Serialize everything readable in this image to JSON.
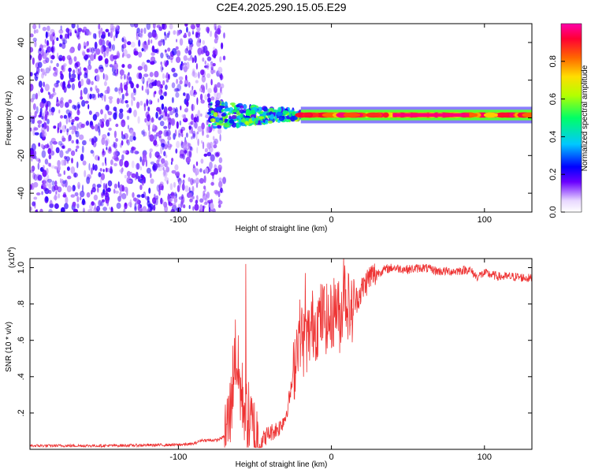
{
  "chart_data": [
    {
      "type": "heatmap",
      "title": "C2E4.2025.290.15.05.E29",
      "xlabel": "Height of straight line (km)",
      "ylabel": "Frequency (Hz)",
      "xlim": [
        -197,
        131
      ],
      "ylim": [
        -50,
        50
      ],
      "xticks": [
        -100,
        0,
        100
      ],
      "yticks": [
        -40,
        -20,
        0,
        20,
        40
      ],
      "colorbar": {
        "label": "Normalized spectral amplitude",
        "range": [
          0,
          1
        ],
        "ticks": [
          0.0,
          0.2,
          0.4,
          0.6,
          0.8
        ],
        "tick_labels": [
          "0.0",
          "0.2",
          "0.4",
          "0.6",
          "0.8"
        ],
        "colors": [
          "#ffffff",
          "#6a00ff",
          "#0000ff",
          "#00c8ff",
          "#00ff66",
          "#b4ff00",
          "#ffdd00",
          "#ff6600",
          "#ff0033",
          "#ff00aa"
        ]
      },
      "regions": [
        {
          "name": "noise",
          "x_range": [
            -197,
            -70
          ],
          "freq_range": [
            -50,
            50
          ],
          "amplitude": 0.15
        },
        {
          "name": "transition",
          "x_range": [
            -80,
            -20
          ],
          "freq_range": [
            -12,
            12
          ],
          "amplitude": 0.45
        },
        {
          "name": "signal-band",
          "x_range": [
            -20,
            131
          ],
          "freq_center": 1.5,
          "freq_halfwidth": 2,
          "amplitude": 0.95
        }
      ]
    },
    {
      "type": "line",
      "xlabel": "Height of straight line (km)",
      "ylabel": "SNR (10 * v/v)",
      "multiplier": "(x10",
      "multiplier_exp": "4",
      "multiplier_close": ")",
      "xlim": [
        -197,
        131
      ],
      "ylim": [
        0,
        1.05
      ],
      "xticks": [
        -100,
        0,
        100
      ],
      "yticks": [
        0.2,
        0.4,
        0.6,
        0.8,
        1.0
      ],
      "series": [
        {
          "name": "SNR",
          "color": "#ee3333",
          "x": [
            -197,
            -150,
            -100,
            -90,
            -85,
            -80,
            -75,
            -70,
            -66,
            -63,
            -61,
            -59,
            -57,
            -55,
            -52,
            -50,
            -48,
            -45,
            -42,
            -38,
            -34,
            -30,
            -27,
            -25,
            -22,
            -20,
            -18,
            -15,
            -12,
            -10,
            -8,
            -5,
            -2,
            0,
            3,
            6,
            8,
            10,
            13,
            16,
            20,
            25,
            30,
            35,
            40,
            50,
            60,
            70,
            80,
            90,
            95,
            100,
            110,
            120,
            131
          ],
          "y": [
            0.02,
            0.02,
            0.025,
            0.03,
            0.05,
            0.05,
            0.05,
            0.07,
            0.2,
            0.55,
            0.42,
            0.3,
            0.25,
            0.18,
            0.12,
            0.08,
            0.06,
            0.05,
            0.08,
            0.1,
            0.12,
            0.18,
            0.3,
            0.4,
            0.62,
            0.65,
            0.58,
            0.62,
            0.7,
            0.68,
            0.72,
            0.74,
            0.7,
            0.72,
            0.8,
            0.7,
            0.9,
            0.82,
            0.75,
            0.82,
            0.88,
            0.95,
            0.97,
            0.99,
            1.0,
            0.99,
            1.0,
            0.98,
            0.98,
            0.99,
            0.95,
            0.97,
            0.95,
            0.95,
            0.94
          ]
        }
      ],
      "spikes": [
        {
          "x": -56,
          "y": 1.02
        },
        {
          "x": -17,
          "y": 0.97
        },
        {
          "x": 8,
          "y": 1.07
        }
      ]
    }
  ]
}
